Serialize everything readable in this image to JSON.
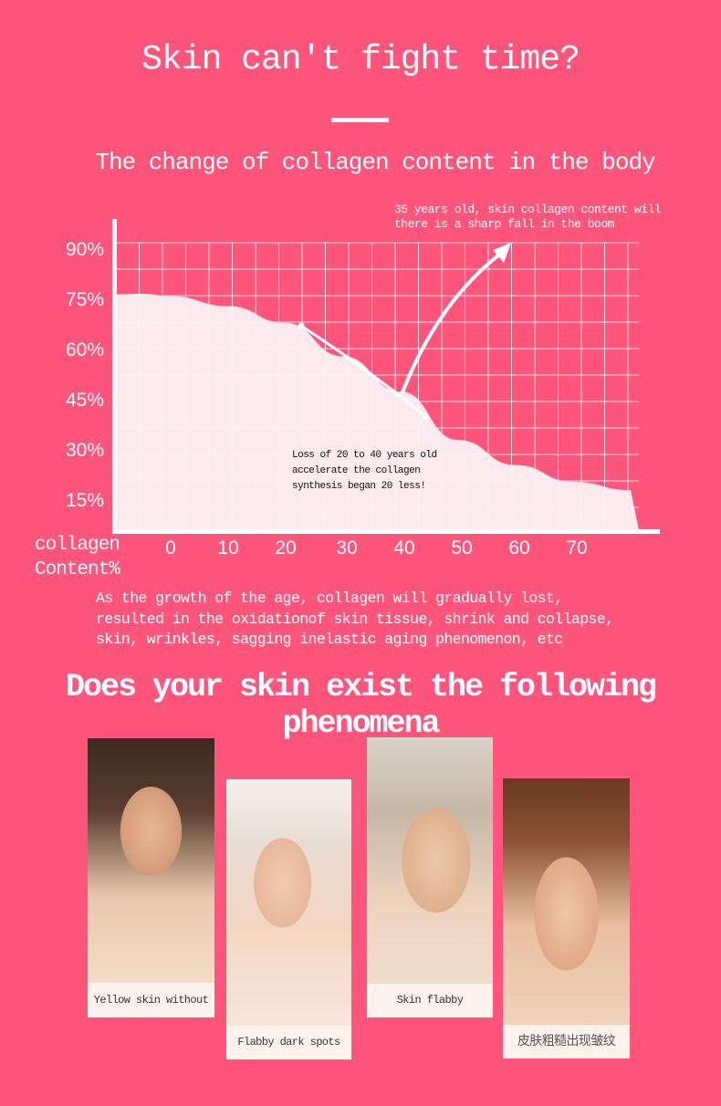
{
  "header": {
    "title": "Skin can't fight time?",
    "subtitle": "The change of collagen content in the body"
  },
  "chart_data": {
    "type": "area",
    "title": "The change of collagen content in the body",
    "xlabel": "",
    "ylabel": "collagen Content%",
    "x_ticks": [
      "0",
      "10",
      "20",
      "30",
      "40",
      "50",
      "60",
      "70"
    ],
    "y_ticks": [
      "90%",
      "75%",
      "60%",
      "45%",
      "30%",
      "15%"
    ],
    "grid": true,
    "series": [
      {
        "x": [
          -10,
          -5,
          0,
          10,
          20,
          30,
          40,
          50,
          60,
          70,
          80
        ],
        "values": [
          77,
          77.2,
          76.5,
          73.5,
          68.5,
          58.5,
          48,
          33.5,
          26,
          21,
          18.5
        ]
      }
    ],
    "markers": [
      {
        "x": 22.7,
        "y": 67.6
      },
      {
        "x": 44.3,
        "y": 40.6
      }
    ],
    "annotations": [
      {
        "text": "35 years old, skin collagen content will\nthere is a sharp fall in the boom"
      },
      {
        "text": "Loss of 20 to 40 years old\naccelerate the collagen\nsynthesis began 20 less!"
      }
    ],
    "colors": {
      "background": "#FF557D",
      "area": "#FDF0F3",
      "grid": "#FFFFFF"
    }
  },
  "chart_labels": {
    "note_top": "35 years old, skin collagen content will\nthere is a sharp fall in the boom",
    "note_mid": "Loss of 20 to 40 years old\naccelerate the collagen\nsynthesis began 20 less!",
    "ylabel_1": "collagen",
    "ylabel_2": "Content%"
  },
  "description": "As the growth of the age, collagen will gradually lost,\nresulted in the oxidationof skin tissue, shrink and collapse,\nskin, wrinkles, sagging inelastic aging phenomenon, etc",
  "phenomena": {
    "heading": "Does your skin exist the following phenomena",
    "cards": [
      {
        "caption": "Yellow skin without luster"
      },
      {
        "caption": "Flabby dark spots"
      },
      {
        "caption": "Skin flabby inelastic"
      },
      {
        "caption": "皮肤粗糙出现皱纹"
      }
    ]
  }
}
